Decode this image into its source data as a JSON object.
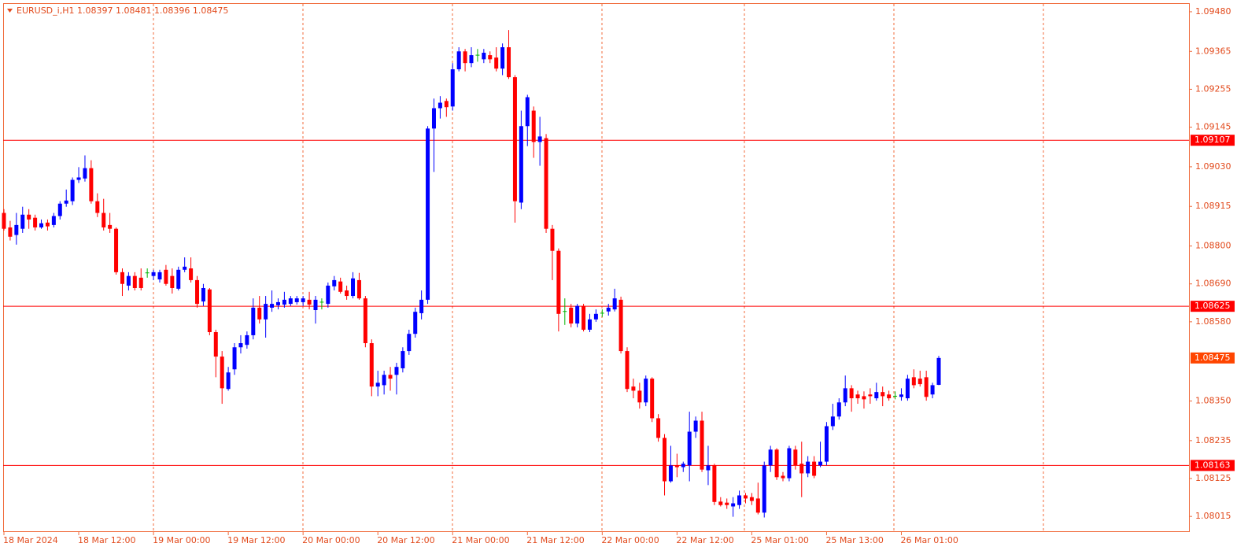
{
  "chart_data": {
    "type": "candlestick",
    "title": "EURUSD_i,H1  1.08397 1.08481 1.08396 1.08475",
    "categories": [
      "18 Mar 2024",
      null,
      null,
      null,
      null,
      null,
      null,
      null,
      null,
      null,
      null,
      null,
      "18 Mar 12:00",
      null,
      null,
      null,
      null,
      null,
      null,
      null,
      null,
      null,
      null,
      null,
      "19 Mar 00:00",
      null,
      null,
      null,
      null,
      null,
      null,
      null,
      null,
      null,
      null,
      null,
      "19 Mar 12:00",
      null,
      null,
      null,
      null,
      null,
      null,
      null,
      null,
      null,
      null,
      null,
      "20 Mar 00:00",
      null,
      null,
      null,
      null,
      null,
      null,
      null,
      null,
      null,
      null,
      null,
      "20 Mar 12:00",
      null,
      null,
      null,
      null,
      null,
      null,
      null,
      null,
      null,
      null,
      null,
      "21 Mar 00:00",
      null,
      null,
      null,
      null,
      null,
      null,
      null,
      null,
      null,
      null,
      null,
      "21 Mar 12:00",
      null,
      null,
      null,
      null,
      null,
      null,
      null,
      null,
      null,
      null,
      null,
      "22 Mar 00:00",
      null,
      null,
      null,
      null,
      null,
      null,
      null,
      null,
      null,
      null,
      null,
      "22 Mar 12:00",
      null,
      null,
      null,
      null,
      null,
      null,
      null,
      null,
      null,
      null,
      null,
      "25 Mar 01:00",
      null,
      null,
      null,
      null,
      null,
      null,
      null,
      null,
      null,
      null,
      null,
      "25 Mar 13:00",
      null,
      null,
      null,
      null,
      null,
      null,
      null,
      null,
      null,
      null,
      null,
      "26 Mar 01:00",
      null,
      null,
      null,
      null,
      null,
      null
    ],
    "open": [
      1.08896,
      1.08854,
      1.08832,
      1.0885,
      1.08891,
      1.08882,
      1.08854,
      1.08868,
      1.08861,
      1.08887,
      1.08923,
      1.0893,
      1.08992,
      1.08996,
      1.09026,
      1.0893,
      1.08896,
      1.08861,
      1.0885,
      1.08724,
      1.08685,
      1.08713,
      1.08708,
      1.08722,
      1.08713,
      1.08703,
      1.08731,
      1.08713,
      1.08676,
      1.08731,
      1.08735,
      1.08701,
      1.08639,
      1.08674,
      1.0855,
      1.08479,
      1.08385,
      1.08442,
      1.08506,
      1.08513,
      1.08541,
      1.08621,
      1.08587,
      1.08621,
      1.08628,
      1.0863,
      1.08632,
      1.08637,
      1.08637,
      1.08644,
      1.08614,
      1.08637,
      1.08632,
      1.08683,
      1.08697,
      1.08671,
      1.08655,
      1.08701,
      1.08648,
      1.08518,
      1.08392,
      1.08396,
      1.08426,
      1.08426,
      1.08445,
      1.08495,
      1.08545,
      1.08605,
      1.08644,
      1.09141,
      1.092,
      1.09221,
      1.09205,
      1.09313,
      1.09365,
      1.09331,
      1.09354,
      1.09342,
      1.09354,
      1.09347,
      1.09315,
      1.09377,
      1.0929,
      1.08926,
      1.09148,
      1.09193,
      1.09102,
      1.09113,
      1.0885,
      1.08786,
      1.0861,
      1.08621,
      1.08575,
      1.08626,
      1.08557,
      1.08587,
      1.08605,
      1.0861,
      1.08616,
      1.08644,
      1.08495,
      1.08392,
      1.0838,
      1.08346,
      1.08415,
      1.083,
      1.08243,
      1.08117,
      1.08163,
      1.08158,
      1.08163,
      1.08261,
      1.08293,
      1.08149,
      1.08163,
      1.08058,
      1.08055,
      1.08044,
      1.08048,
      1.08076,
      1.08071,
      1.08067,
      1.08026,
      1.08163,
      1.08209,
      1.08133,
      1.08126,
      1.08209,
      1.08168,
      1.0814,
      1.08174,
      1.08163,
      1.08174,
      1.08277,
      1.08305,
      1.08346,
      1.08387,
      1.08369,
      1.08364,
      1.08369,
      1.08358,
      1.08376,
      1.08369,
      1.08364,
      1.08362,
      1.08358,
      1.08419,
      1.08415,
      1.08419,
      1.08369,
      1.08397
    ],
    "high": [
      1.08907,
      1.08873,
      1.08896,
      1.08914,
      1.08907,
      1.08891,
      1.08877,
      1.08877,
      1.08896,
      1.0893,
      1.08964,
      1.08999,
      1.09029,
      1.09063,
      1.09049,
      1.08953,
      1.08937,
      1.08896,
      1.08854,
      1.08735,
      1.08724,
      1.08724,
      1.08735,
      1.08735,
      1.08731,
      1.08731,
      1.08745,
      1.08735,
      1.0874,
      1.08767,
      1.08767,
      1.08713,
      1.0869,
      1.08678,
      1.08557,
      1.08495,
      1.08449,
      1.08518,
      1.08541,
      1.08552,
      1.08648,
      1.08655,
      1.08655,
      1.08671,
      1.08648,
      1.08667,
      1.08655,
      1.08655,
      1.08655,
      1.08667,
      1.08655,
      1.08648,
      1.08694,
      1.08713,
      1.08708,
      1.08685,
      1.08724,
      1.08722,
      1.08655,
      1.08529,
      1.08438,
      1.08438,
      1.08449,
      1.08461,
      1.08506,
      1.08557,
      1.08621,
      1.08671,
      1.09148,
      1.09228,
      1.09235,
      1.09228,
      1.09331,
      1.09377,
      1.09372,
      1.09377,
      1.09372,
      1.09372,
      1.09365,
      1.09377,
      1.09388,
      1.09427,
      1.09296,
      1.09193,
      1.09239,
      1.09205,
      1.09175,
      1.09125,
      1.08861,
      1.08793,
      1.08648,
      1.08632,
      1.08632,
      1.08632,
      1.08603,
      1.08616,
      1.08616,
      1.08632,
      1.08676,
      1.08653,
      1.08506,
      1.08415,
      1.08403,
      1.08424,
      1.08419,
      1.08312,
      1.08254,
      1.0822,
      1.08197,
      1.08174,
      1.08319,
      1.08305,
      1.08319,
      1.0822,
      1.08168,
      1.08071,
      1.08067,
      1.08071,
      1.0809,
      1.08083,
      1.08083,
      1.08113,
      1.08174,
      1.0822,
      1.08213,
      1.08144,
      1.0822,
      1.0822,
      1.08232,
      1.0819,
      1.0819,
      1.08232,
      1.08289,
      1.08342,
      1.08358,
      1.08424,
      1.08396,
      1.0838,
      1.08378,
      1.08387,
      1.08403,
      1.08392,
      1.0838,
      1.08378,
      1.08387,
      1.08426,
      1.08442,
      1.08438,
      1.08438,
      1.08403,
      1.08481
    ],
    "low": [
      1.08845,
      1.08816,
      1.08804,
      1.08838,
      1.0885,
      1.08845,
      1.0885,
      1.08845,
      1.08854,
      1.08877,
      1.08914,
      1.08919,
      1.08983,
      1.08987,
      1.08923,
      1.08884,
      1.08845,
      1.08838,
      1.08717,
      1.08655,
      1.08671,
      1.08671,
      1.08671,
      1.08708,
      1.08701,
      1.08694,
      1.08685,
      1.08662,
      1.08671,
      1.08724,
      1.08694,
      1.08621,
      1.08626,
      1.08541,
      1.08419,
      1.08342,
      1.0838,
      1.08426,
      1.08488,
      1.08502,
      1.08529,
      1.08575,
      1.08534,
      1.08609,
      1.08616,
      1.08621,
      1.08626,
      1.0863,
      1.08626,
      1.08616,
      1.08575,
      1.08616,
      1.08621,
      1.08671,
      1.08662,
      1.08644,
      1.08648,
      1.08644,
      1.08506,
      1.08364,
      1.08364,
      1.08369,
      1.0838,
      1.08369,
      1.08433,
      1.08484,
      1.08534,
      1.08587,
      1.08632,
      1.09015,
      1.0917,
      1.09175,
      1.09193,
      1.09307,
      1.09307,
      1.09319,
      1.09335,
      1.09331,
      1.09331,
      1.09307,
      1.09296,
      1.09285,
      1.08868,
      1.08907,
      1.0909,
      1.09056,
      1.09033,
      1.08838,
      1.08701,
      1.08552,
      1.08571,
      1.08564,
      1.08564,
      1.08552,
      1.0855,
      1.0858,
      1.08594,
      1.08598,
      1.0861,
      1.08488,
      1.08376,
      1.08358,
      1.08328,
      1.08335,
      1.08289,
      1.08232,
      1.08076,
      1.08113,
      1.08129,
      1.08144,
      1.08117,
      1.08243,
      1.08144,
      1.08106,
      1.08048,
      1.08044,
      1.08037,
      1.08014,
      1.08037,
      1.08053,
      1.08048,
      1.08021,
      1.08012,
      1.08144,
      1.08121,
      1.08117,
      1.08117,
      1.08151,
      1.08071,
      1.08129,
      1.08126,
      1.08158,
      1.08163,
      1.08266,
      1.08296,
      1.08335,
      1.08319,
      1.08342,
      1.08328,
      1.08342,
      1.08351,
      1.08335,
      1.08351,
      1.08355,
      1.08351,
      1.08351,
      1.08387,
      1.08392,
      1.08351,
      1.08358,
      1.08396
    ],
    "close": [
      1.0885,
      1.08827,
      1.08861,
      1.08891,
      1.08877,
      1.08854,
      1.08866,
      1.08857,
      1.08887,
      1.08923,
      1.08932,
      1.08992,
      1.08999,
      1.09026,
      1.0893,
      1.08896,
      1.08854,
      1.0885,
      1.08724,
      1.0869,
      1.08713,
      1.08678,
      1.08678,
      1.08722,
      1.08724,
      1.08724,
      1.0869,
      1.08678,
      1.08731,
      1.0874,
      1.08701,
      1.08632,
      1.08678,
      1.0855,
      1.08479,
      1.08387,
      1.08433,
      1.08506,
      1.08518,
      1.08541,
      1.08621,
      1.08587,
      1.08632,
      1.08632,
      1.08637,
      1.08644,
      1.08648,
      1.08648,
      1.08648,
      1.0863,
      1.08644,
      1.08637,
      1.08685,
      1.08701,
      1.08667,
      1.08655,
      1.08706,
      1.08648,
      1.08518,
      1.08392,
      1.08403,
      1.08426,
      1.08415,
      1.08449,
      1.08495,
      1.08545,
      1.08609,
      1.08644,
      1.09141,
      1.092,
      1.09216,
      1.09203,
      1.09313,
      1.09365,
      1.09331,
      1.09354,
      1.09354,
      1.09361,
      1.09342,
      1.09315,
      1.09377,
      1.0929,
      1.0893,
      1.09148,
      1.09232,
      1.09102,
      1.09118,
      1.0885,
      1.08786,
      1.08603,
      1.0861,
      1.08575,
      1.08626,
      1.08557,
      1.08587,
      1.08603,
      1.08605,
      1.08621,
      1.08648,
      1.08495,
      1.08385,
      1.0838,
      1.08346,
      1.08415,
      1.083,
      1.08243,
      1.08117,
      1.08163,
      1.08158,
      1.08168,
      1.08261,
      1.08293,
      1.08151,
      1.08163,
      1.08057,
      1.08048,
      1.08048,
      1.08053,
      1.08076,
      1.08067,
      1.0806,
      1.08026,
      1.08163,
      1.08209,
      1.08129,
      1.08126,
      1.08213,
      1.08163,
      1.0814,
      1.08174,
      1.08133,
      1.08174,
      1.08277,
      1.08305,
      1.08346,
      1.08387,
      1.08358,
      1.08358,
      1.08355,
      1.08364,
      1.08376,
      1.08364,
      1.08358,
      1.08364,
      1.08369,
      1.08415,
      1.08396,
      1.08399,
      1.08362,
      1.08396,
      1.08475
    ],
    "up_color": "#0000ff",
    "down_color": "#ff0000",
    "doji_color": "#00b400",
    "ylim": [
      1.07972,
      1.09505
    ],
    "yticks": [
      {
        "value": 1.0948,
        "label": "1.09480"
      },
      1.09365,
      1.09255,
      1.09145,
      {
        "value": 1.0903,
        "label": "1.09030"
      },
      1.08915,
      {
        "value": 1.088,
        "label": "1.08800"
      },
      {
        "value": 1.0869,
        "label": "1.08690"
      },
      {
        "value": 1.0858,
        "label": "1.08580"
      },
      {
        "value": 1.0835,
        "label": "1.08350"
      },
      1.08235,
      1.08125,
      1.08015
    ],
    "hlines": [
      1.09107,
      1.08625,
      1.08163
    ],
    "hline_color": "#ff0000",
    "last_price": 1.08475,
    "last_price_color": "#ff4500"
  }
}
